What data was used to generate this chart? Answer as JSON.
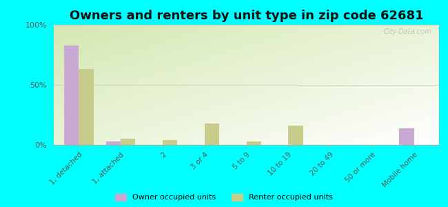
{
  "title": "Owners and renters by unit type in zip code 62681",
  "categories": [
    "1, detached",
    "1, attached",
    "2",
    "3 or 4",
    "5 to 9",
    "10 to 19",
    "20 to 49",
    "50 or more",
    "Mobile home"
  ],
  "owner_values": [
    83,
    3,
    0,
    0,
    0,
    0,
    0,
    0,
    14
  ],
  "renter_values": [
    63,
    5,
    4,
    18,
    3,
    16,
    0,
    0,
    0
  ],
  "owner_color": "#c9a8d4",
  "renter_color": "#c8cc8a",
  "bg_color_topleft": "#d4e8b0",
  "bg_color_bottomright": "#f4faf0",
  "outer_bg": "#00ffff",
  "ylim": [
    0,
    100
  ],
  "yticks": [
    0,
    50,
    100
  ],
  "ytick_labels": [
    "0%",
    "50%",
    "100%"
  ],
  "bar_width": 0.35,
  "legend_owner": "Owner occupied units",
  "legend_renter": "Renter occupied units",
  "title_fontsize": 13,
  "watermark": "City-Data.com"
}
